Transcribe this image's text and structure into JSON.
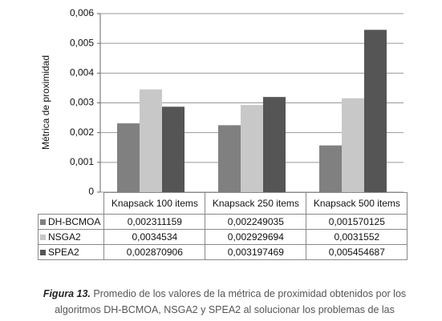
{
  "chart_data": {
    "type": "bar",
    "ylabel": "Métrica de proximidad",
    "categories": [
      "Knapsack 100 items",
      "Knapsack 250 items",
      "Knapsack 500 items"
    ],
    "series": [
      {
        "name": "DH-BCMOA",
        "color": "#808080",
        "values": [
          0.002311159,
          0.002249035,
          0.001570125
        ],
        "value_labels": [
          "0,002311159",
          "0,002249035",
          "0,001570125"
        ]
      },
      {
        "name": "NSGA2",
        "color": "#c8c8c8",
        "values": [
          0.0034534,
          0.002929694,
          0.0031552
        ],
        "value_labels": [
          "0,0034534",
          "0,002929694",
          "0,0031552"
        ]
      },
      {
        "name": "SPEA2",
        "color": "#555555",
        "values": [
          0.002870906,
          0.003197469,
          0.005454687
        ],
        "value_labels": [
          "0,002870906",
          "0,003197469",
          "0,005454687"
        ]
      }
    ],
    "ylim": [
      0,
      0.006
    ],
    "yticks": [
      0,
      {
        "value": 0.001,
        "label": "0,001"
      },
      {
        "value": 0.002,
        "label": "0,002"
      },
      {
        "value": 0.003,
        "label": "0,003"
      },
      {
        "value": 0.004,
        "label": "0,004"
      },
      {
        "value": 0.005,
        "label": "0,005"
      },
      {
        "value": 0.006,
        "label": "0,006"
      }
    ],
    "grid": true
  },
  "caption": {
    "label": "Figura 13.",
    "text": "Promedio de los valores de la métrica de proximidad obtenidos por los algoritmos DH-BCMOA, NSGA2 y  SPEA2 al solucionar los problemas de las mochilas."
  }
}
